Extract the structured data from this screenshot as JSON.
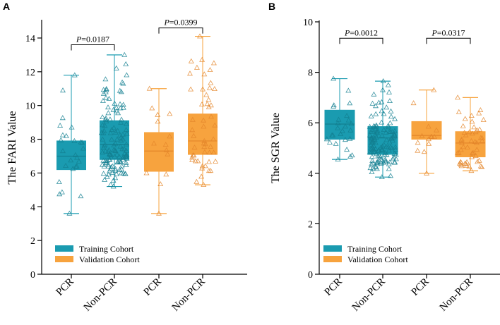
{
  "colors": {
    "training": "#1a9bb0",
    "training_edge": "#137f90",
    "validation": "#f7a33e",
    "validation_edge": "#e4862a",
    "axis": "#000000"
  },
  "chart_data": [
    {
      "type": "box",
      "panel": "A",
      "ylabel": "The FARI Value",
      "ylim": [
        0,
        15
      ],
      "yticks": [
        0,
        2,
        4,
        6,
        8,
        10,
        12,
        14
      ],
      "categories": [
        "PCR",
        "Non-PCR",
        "PCR",
        "Non-PCR"
      ],
      "legend": [
        {
          "name": "Training Cohort",
          "color_key": "training"
        },
        {
          "name": "Validation Cohort",
          "color_key": "validation"
        }
      ],
      "groups": [
        {
          "cohort": "training",
          "min": 3.6,
          "q1": 6.2,
          "median": 7.0,
          "q3": 7.9,
          "max": 11.8,
          "n": 26
        },
        {
          "cohort": "training",
          "min": 5.2,
          "q1": 6.8,
          "median": 7.7,
          "q3": 9.1,
          "max": 13.0,
          "n": 130
        },
        {
          "cohort": "validation",
          "min": 3.6,
          "q1": 6.1,
          "median": 7.3,
          "q3": 8.4,
          "max": 11.0,
          "n": 14
        },
        {
          "cohort": "validation",
          "min": 5.3,
          "q1": 7.1,
          "median": 7.9,
          "q3": 9.5,
          "max": 14.1,
          "n": 52
        }
      ],
      "comparisons": [
        {
          "between": [
            0,
            1
          ],
          "label_prefix": "P",
          "label_value": "=0.0187",
          "level": 13.6
        },
        {
          "between": [
            2,
            3
          ],
          "label_prefix": "P",
          "label_value": "=0.0399",
          "level": 14.6
        }
      ]
    },
    {
      "type": "box",
      "panel": "B",
      "ylabel": "The SGR Value",
      "ylim": [
        0,
        10
      ],
      "yticks": [
        0,
        2,
        4,
        6,
        8,
        10
      ],
      "categories": [
        "PCR",
        "Non-PCR",
        "PCR",
        "Non-PCR"
      ],
      "legend": [
        {
          "name": "Training Cohort",
          "color_key": "training"
        },
        {
          "name": "Validation Cohort",
          "color_key": "validation"
        }
      ],
      "groups": [
        {
          "cohort": "training",
          "min": 4.55,
          "q1": 5.35,
          "median": 5.95,
          "q3": 6.5,
          "max": 7.75,
          "n": 26
        },
        {
          "cohort": "training",
          "min": 3.85,
          "q1": 4.75,
          "median": 5.4,
          "q3": 5.85,
          "max": 7.65,
          "n": 130
        },
        {
          "cohort": "validation",
          "min": 4.0,
          "q1": 5.35,
          "median": 5.5,
          "q3": 6.05,
          "max": 7.3,
          "n": 14
        },
        {
          "cohort": "validation",
          "min": 4.1,
          "q1": 4.65,
          "median": 5.2,
          "q3": 5.65,
          "max": 7.0,
          "n": 52
        }
      ],
      "comparisons": [
        {
          "between": [
            0,
            1
          ],
          "label_prefix": "P",
          "label_value": "=0.0012",
          "level": 9.35
        },
        {
          "between": [
            2,
            3
          ],
          "label_prefix": "P",
          "label_value": "=0.0317",
          "level": 9.35
        }
      ]
    }
  ]
}
